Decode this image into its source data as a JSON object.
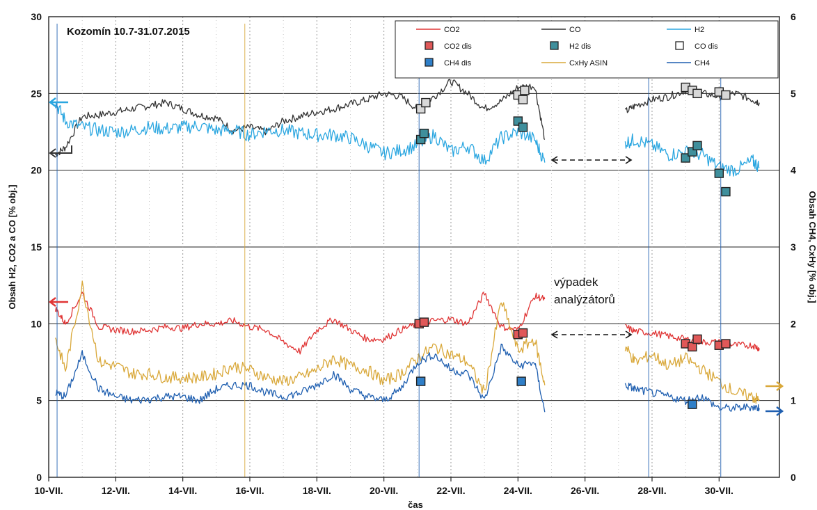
{
  "chart_data": {
    "type": "line",
    "title": "Kozomín 10.7-31.07.2015",
    "xlabel": "čas",
    "ylabel_left": "Obsah H2, CO2 a CO [% obj.]",
    "ylabel_right": "Obsah CH4, CxHy [% obj.]",
    "x_ticks": [
      "10-VII.",
      "12-VII.",
      "14-VII.",
      "16-VII.",
      "18-VII.",
      "20-VII.",
      "22-VII.",
      "24-VII.",
      "26-VII.",
      "28-VII.",
      "30-VII."
    ],
    "x_range_days": [
      10,
      31.8
    ],
    "ylim_left": [
      0,
      30
    ],
    "ylim_right": [
      0,
      6
    ],
    "y_ticks_left": [
      "0",
      "5",
      "10",
      "15",
      "20",
      "25",
      "30"
    ],
    "y_ticks_right": [
      "0",
      "1",
      "2",
      "3",
      "4",
      "5",
      "6"
    ],
    "grid": true,
    "legend_position": "top-right",
    "legend": [
      {
        "label": "CO2",
        "kind": "line",
        "color": "#e03535"
      },
      {
        "label": "CO",
        "kind": "line",
        "color": "#333333"
      },
      {
        "label": "H2",
        "kind": "line",
        "color": "#2aa6e0"
      },
      {
        "label": "CO2 dis",
        "kind": "marker",
        "color": "#e05858"
      },
      {
        "label": "H2 dis",
        "kind": "marker",
        "color": "#3f8f9c"
      },
      {
        "label": "CO dis",
        "kind": "marker",
        "color": "#ffffff"
      },
      {
        "label": "CH4 dis",
        "kind": "marker",
        "color": "#2f7fc8"
      },
      {
        "label": "CxHy ASIN",
        "kind": "line",
        "color": "#d9a83a"
      },
      {
        "label": "CH4",
        "kind": "line",
        "color": "#1f5fb0"
      }
    ],
    "annotation": "výpadek\nanalýzátorů",
    "series": [
      {
        "name": "CO",
        "axis": "left",
        "color": "#333333",
        "x": [
          10.2,
          10.5,
          11.0,
          11.5,
          12.0,
          12.5,
          13.0,
          13.5,
          14.0,
          14.5,
          15.0,
          15.5,
          16.0,
          16.5,
          17.0,
          17.5,
          18.0,
          18.5,
          19.0,
          19.5,
          20.0,
          20.5,
          21.0,
          21.5,
          22.0,
          22.5,
          23.0,
          23.5,
          24.0,
          24.5,
          24.8
        ],
        "y": [
          21.0,
          21.5,
          23.5,
          23.6,
          23.8,
          24.0,
          24.2,
          24.4,
          24.0,
          23.6,
          23.4,
          22.6,
          22.8,
          22.5,
          23.2,
          23.5,
          23.8,
          24.0,
          24.3,
          24.6,
          25.0,
          24.8,
          24.0,
          24.8,
          25.8,
          25.0,
          24.0,
          24.5,
          25.4,
          25.5,
          22.0
        ]
      },
      {
        "name": "CO",
        "axis": "left",
        "color": "#333333",
        "x": [
          27.2,
          27.5,
          28.0,
          28.5,
          29.0,
          29.5,
          30.0,
          30.5,
          31.0,
          31.2
        ],
        "y": [
          23.8,
          24.2,
          24.6,
          24.8,
          25.2,
          25.0,
          24.8,
          25.0,
          24.6,
          24.4
        ]
      },
      {
        "name": "H2",
        "axis": "left",
        "color": "#2aa6e0",
        "x": [
          10.2,
          10.5,
          11.0,
          11.5,
          12.0,
          12.5,
          13.0,
          13.5,
          14.0,
          14.5,
          15.0,
          15.5,
          16.0,
          16.5,
          17.0,
          17.5,
          18.0,
          18.5,
          19.0,
          19.5,
          20.0,
          20.5,
          21.0,
          21.5,
          22.0,
          22.5,
          23.0,
          23.5,
          24.0,
          24.5,
          24.8
        ],
        "y": [
          24.4,
          23.2,
          22.8,
          22.6,
          22.5,
          22.6,
          22.8,
          22.7,
          22.8,
          22.9,
          22.6,
          22.6,
          22.3,
          22.6,
          22.6,
          22.4,
          22.3,
          22.3,
          22.1,
          21.6,
          21.1,
          21.3,
          21.6,
          22.3,
          21.2,
          21.6,
          20.6,
          22.1,
          22.5,
          22.0,
          20.5
        ]
      },
      {
        "name": "H2",
        "axis": "left",
        "color": "#2aa6e0",
        "x": [
          27.2,
          27.5,
          28.0,
          28.5,
          29.0,
          29.5,
          30.0,
          30.5,
          31.0,
          31.2
        ],
        "y": [
          21.8,
          22.0,
          21.6,
          21.0,
          21.2,
          21.0,
          20.2,
          20.0,
          20.6,
          20.2
        ]
      },
      {
        "name": "CO2",
        "axis": "left",
        "color": "#e03535",
        "x": [
          10.2,
          10.5,
          11.0,
          11.5,
          12.0,
          12.5,
          13.0,
          13.5,
          14.0,
          14.5,
          15.0,
          15.5,
          16.0,
          16.5,
          17.0,
          17.5,
          18.0,
          18.5,
          19.0,
          19.5,
          20.0,
          20.5,
          21.0,
          21.5,
          22.0,
          22.5,
          23.0,
          23.5,
          24.0,
          24.5,
          24.8
        ],
        "y": [
          11.0,
          10.0,
          12.0,
          9.8,
          9.6,
          9.5,
          9.6,
          9.8,
          9.7,
          10.0,
          10.0,
          10.2,
          9.8,
          9.6,
          8.8,
          8.2,
          9.6,
          10.3,
          9.6,
          9.0,
          9.0,
          9.6,
          10.0,
          10.2,
          10.3,
          10.0,
          12.0,
          9.8,
          9.6,
          11.8,
          11.6
        ]
      },
      {
        "name": "CO2",
        "axis": "left",
        "color": "#e03535",
        "x": [
          27.2,
          27.5,
          28.0,
          28.5,
          29.0,
          29.5,
          30.0,
          30.5,
          31.0,
          31.2
        ],
        "y": [
          9.8,
          9.5,
          9.4,
          9.2,
          9.0,
          8.8,
          8.8,
          8.6,
          8.6,
          8.4
        ]
      },
      {
        "name": "CxHy ASIN",
        "axis": "right",
        "color": "#d9a83a",
        "x": [
          10.2,
          10.5,
          11.0,
          11.5,
          12.0,
          12.5,
          13.0,
          13.5,
          14.0,
          14.5,
          15.0,
          15.5,
          16.0,
          16.5,
          17.0,
          17.5,
          18.0,
          18.5,
          19.0,
          19.5,
          20.0,
          20.5,
          21.0,
          21.5,
          22.0,
          22.5,
          23.0,
          23.5,
          24.0,
          24.5,
          24.8
        ],
        "y": [
          1.8,
          1.4,
          2.5,
          1.5,
          1.45,
          1.35,
          1.35,
          1.3,
          1.3,
          1.3,
          1.35,
          1.45,
          1.4,
          1.3,
          1.25,
          1.3,
          1.4,
          1.55,
          1.45,
          1.4,
          1.25,
          1.35,
          1.55,
          1.7,
          1.6,
          1.5,
          1.1,
          2.3,
          1.65,
          1.8,
          1.2
        ]
      },
      {
        "name": "CxHy ASIN",
        "axis": "right",
        "color": "#d9a83a",
        "x": [
          27.2,
          27.5,
          28.0,
          28.5,
          29.0,
          29.5,
          30.0,
          30.5,
          31.0,
          31.2
        ],
        "y": [
          1.7,
          1.5,
          1.6,
          1.45,
          1.55,
          1.4,
          1.25,
          1.1,
          1.05,
          1.0
        ]
      },
      {
        "name": "CH4",
        "axis": "right",
        "color": "#1f5fb0",
        "x": [
          10.2,
          10.5,
          11.0,
          11.5,
          12.0,
          12.5,
          13.0,
          13.5,
          14.0,
          14.5,
          15.0,
          15.5,
          16.0,
          16.5,
          17.0,
          17.5,
          18.0,
          18.5,
          19.0,
          19.5,
          20.0,
          20.5,
          21.0,
          21.5,
          22.0,
          22.5,
          23.0,
          23.5,
          24.0,
          24.5,
          24.8
        ],
        "y": [
          1.1,
          1.05,
          1.6,
          1.15,
          1.05,
          1.0,
          1.02,
          1.05,
          1.05,
          1.0,
          1.15,
          1.2,
          1.2,
          1.1,
          1.05,
          1.1,
          1.2,
          1.35,
          1.15,
          1.05,
          1.0,
          1.15,
          1.5,
          1.6,
          1.4,
          1.35,
          1.0,
          1.7,
          1.45,
          1.5,
          0.85
        ]
      },
      {
        "name": "CH4",
        "axis": "right",
        "color": "#1f5fb0",
        "x": [
          27.2,
          27.5,
          28.0,
          28.5,
          29.0,
          29.5,
          30.0,
          30.5,
          31.0,
          31.2
        ],
        "y": [
          1.2,
          1.15,
          1.1,
          1.05,
          1.0,
          1.05,
          0.9,
          0.9,
          0.92,
          0.9
        ]
      }
    ],
    "markers": [
      {
        "name": "CO dis",
        "axis": "left",
        "x": [
          21.1,
          21.25,
          24.0,
          24.2,
          24.15,
          29.0,
          29.2,
          29.35,
          30.0,
          30.2
        ],
        "y": [
          24.0,
          24.4,
          24.9,
          25.2,
          24.6,
          25.4,
          25.2,
          25.0,
          25.1,
          24.9
        ]
      },
      {
        "name": "H2 dis",
        "axis": "left",
        "x": [
          21.1,
          21.2,
          24.0,
          24.15,
          29.0,
          29.2,
          29.35,
          30.0,
          30.2
        ],
        "y": [
          22.0,
          22.4,
          23.2,
          22.8,
          20.8,
          21.2,
          21.6,
          19.8,
          18.6
        ]
      },
      {
        "name": "CO2 dis",
        "axis": "left",
        "x": [
          21.05,
          21.2,
          24.0,
          24.15,
          29.0,
          29.2,
          29.35,
          30.0,
          30.2
        ],
        "y": [
          10.0,
          10.1,
          9.3,
          9.4,
          8.7,
          8.5,
          9.0,
          8.6,
          8.7
        ]
      },
      {
        "name": "CH4 dis",
        "axis": "right",
        "x": [
          21.1,
          24.1,
          29.2
        ],
        "y": [
          1.25,
          1.25,
          0.95
        ]
      }
    ]
  }
}
